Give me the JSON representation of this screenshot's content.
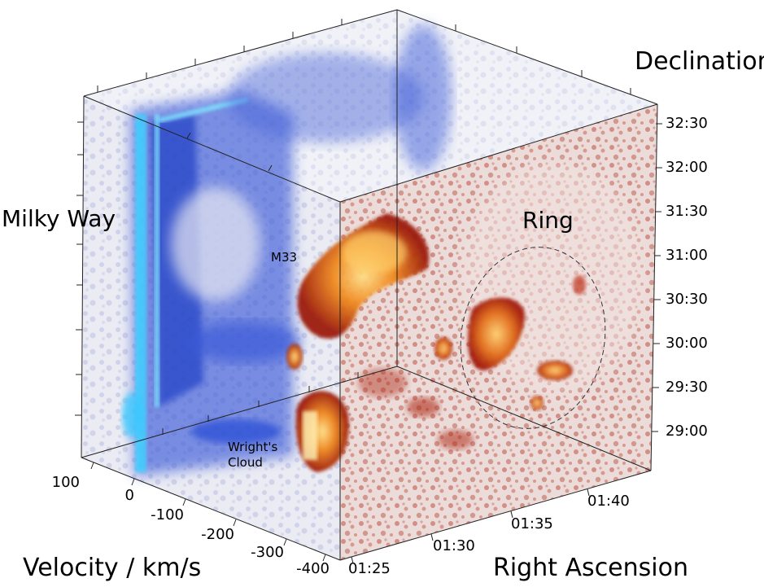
{
  "axes": {
    "declination": {
      "title": "Declination",
      "ticks": [
        "32:30",
        "32:00",
        "31:30",
        "31:00",
        "30:30",
        "30:00",
        "29:30",
        "29:00"
      ]
    },
    "velocity": {
      "title": "Velocity / km/s",
      "ticks": [
        "100",
        "0",
        "-100",
        "-200",
        "-300",
        "-400"
      ]
    },
    "right_ascension": {
      "title": "Right Ascension",
      "ticks": [
        "01:25",
        "01:30",
        "01:35",
        "01:40"
      ]
    }
  },
  "regions": {
    "milky_way": "Milky Way",
    "ring": "Ring"
  },
  "annotations": {
    "m33": "M33",
    "wrights_cloud_line1": "Wright's",
    "wrights_cloud_line2": "Cloud"
  },
  "colors": {
    "milky_way_emission": "#2a4fd6",
    "milky_way_bright": "#39c8ff",
    "m33_emission": "#b0200a",
    "m33_core": "#ffb43a",
    "noise_blue": "#9aa3d8",
    "noise_red": "#b83a2a"
  }
}
